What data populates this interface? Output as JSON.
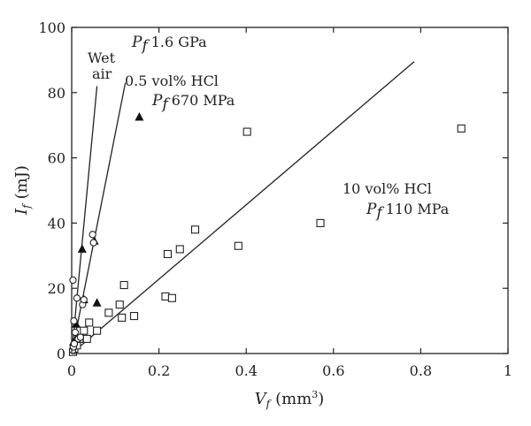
{
  "chart_data": {
    "type": "scatter",
    "xlabel": "V",
    "xlabel_sub": "f",
    "xlabel_unit": "(mm",
    "xlabel_unit_sup": "3",
    "xlabel_unit_close": ")",
    "ylabel": "I",
    "ylabel_sub": "f",
    "ylabel_unit": "(mJ)",
    "xlim": [
      0,
      1
    ],
    "ylim": [
      0,
      100
    ],
    "x_ticks": [
      0,
      0.2,
      0.4,
      0.6,
      0.8,
      1
    ],
    "x_tick_labels": [
      "0",
      "0.2",
      "0.4",
      "0.6",
      "0.8",
      "1"
    ],
    "y_ticks": [
      0,
      20,
      40,
      60,
      80,
      100
    ],
    "y_tick_labels": [
      "0",
      "20",
      "40",
      "60",
      "80",
      "100"
    ],
    "annotations": [
      {
        "id": "wet-air-line1",
        "text": "Wet"
      },
      {
        "id": "wet-air-line2",
        "text": "air"
      },
      {
        "id": "pf-1-6",
        "prefix": "P",
        "sub": "f",
        "text": "1.6 GPa"
      },
      {
        "id": "hcl-05",
        "text": "0.5 vol% HCl"
      },
      {
        "id": "pf-670",
        "prefix": "P",
        "sub": "f",
        "text": "670 MPa"
      },
      {
        "id": "hcl-10",
        "text": "10 vol% HCl"
      },
      {
        "id": "pf-110",
        "prefix": "P",
        "sub": "f",
        "text": "110 MPa"
      }
    ],
    "series": [
      {
        "marker": "circle",
        "points": [
          [
            0.002,
            1
          ],
          [
            0.004,
            2
          ],
          [
            0.006,
            3
          ],
          [
            0.003,
            22.5
          ],
          [
            0.005,
            10
          ],
          [
            0.008,
            6.5
          ],
          [
            0.012,
            17
          ],
          [
            0.015,
            4.5
          ],
          [
            0.02,
            5
          ],
          [
            0.025,
            15
          ],
          [
            0.028,
            16.5
          ],
          [
            0.048,
            36.5
          ],
          [
            0.05,
            34
          ]
        ],
        "fit": [
          [
            0,
            0
          ],
          [
            0.058,
            82
          ]
        ]
      },
      {
        "marker": "triangle",
        "points": [
          [
            0.004,
            3.5
          ],
          [
            0.01,
            9
          ],
          [
            0.024,
            32
          ],
          [
            0.028,
            16.5
          ],
          [
            0.052,
            34.5
          ],
          [
            0.058,
            15.5
          ],
          [
            0.155,
            72.5
          ]
        ],
        "fit": [
          [
            0,
            0
          ],
          [
            0.123,
            83
          ]
        ]
      },
      {
        "marker": "square",
        "points": [
          [
            0.003,
            0.5
          ],
          [
            0.006,
            1.5
          ],
          [
            0.012,
            2.5
          ],
          [
            0.018,
            4.5
          ],
          [
            0.028,
            7
          ],
          [
            0.035,
            4.5
          ],
          [
            0.04,
            9.5
          ],
          [
            0.058,
            7
          ],
          [
            0.085,
            12.5
          ],
          [
            0.11,
            15
          ],
          [
            0.115,
            11
          ],
          [
            0.12,
            21
          ],
          [
            0.143,
            11.5
          ],
          [
            0.215,
            17.5
          ],
          [
            0.22,
            30.5
          ],
          [
            0.23,
            17
          ],
          [
            0.248,
            32
          ],
          [
            0.283,
            38
          ],
          [
            0.382,
            33
          ],
          [
            0.402,
            68
          ],
          [
            0.57,
            40
          ],
          [
            0.893,
            69
          ]
        ],
        "fit": [
          [
            0,
            0
          ],
          [
            0.785,
            89.5
          ]
        ]
      }
    ]
  }
}
